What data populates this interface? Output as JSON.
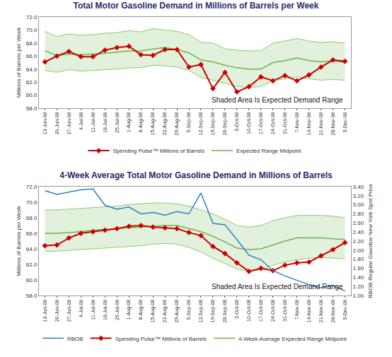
{
  "chart_data": [
    {
      "type": "line",
      "title": "Total Motor Gasoline Demand in Millions of Barrels per Week",
      "y_label": "Millions of Barrels per Week",
      "annotation": "Shaded Area Is Expected Demand Range",
      "categories": [
        "13-Jun-08",
        "20-Jun-08",
        "27-Jun-08",
        "4-Jul-08",
        "11-Jul-08",
        "18-Jul-08",
        "25-Jul-08",
        "1-Aug-08",
        "8-Aug-08",
        "15-Aug-08",
        "22-Aug-08",
        "29-Aug-08",
        "5-Sep-08",
        "12-Sep-08",
        "19-Sep-08",
        "26-Sep-08",
        "3-Oct-08",
        "10-Oct-08",
        "17-Oct-08",
        "24-Oct-08",
        "31-Oct-08",
        "7-Nov-08",
        "14-Nov-08",
        "21-Nov-08",
        "28-Nov-08",
        "5-Dec-08"
      ],
      "band": {
        "color": "#8cc870",
        "lower": [
          63.8,
          63.5,
          63.9,
          63.7,
          63.8,
          63.9,
          64.0,
          64.2,
          64.2,
          64.6,
          64.5,
          64.3,
          63.8,
          62.7,
          62.3,
          61.8,
          61.3,
          61.2,
          61.3,
          62.2,
          62.5,
          62.8,
          62.5,
          62.3,
          62.4,
          62.3
        ],
        "upper": [
          69.8,
          69.0,
          69.4,
          69.2,
          69.3,
          69.5,
          69.6,
          69.9,
          69.7,
          70.2,
          70.0,
          69.8,
          69.3,
          68.1,
          68.0,
          67.1,
          66.9,
          66.8,
          66.8,
          68.0,
          68.3,
          68.7,
          68.3,
          68.1,
          68.2,
          68.0
        ]
      },
      "series": [
        {
          "name": "Expected Range Midpoint",
          "color": "#6db350",
          "line_style": "solid",
          "values": [
            66.8,
            66.1,
            66.3,
            66.2,
            66.3,
            66.4,
            66.6,
            66.8,
            66.8,
            67.1,
            67.3,
            67.0,
            66.5,
            65.4,
            65.1,
            64.6,
            64.2,
            64.0,
            64.0,
            65.0,
            65.3,
            65.7,
            65.3,
            65.1,
            65.3,
            65.0
          ]
        },
        {
          "name": "Spending Pulse™ Millions of Barrels",
          "color": "#cc0000",
          "line_style": "solid",
          "marker": "diamond",
          "values": [
            65.1,
            66.0,
            66.7,
            65.9,
            65.9,
            66.9,
            67.3,
            67.5,
            66.2,
            66.1,
            67.0,
            67.0,
            64.3,
            64.7,
            61.0,
            63.5,
            60.5,
            61.3,
            62.8,
            62.2,
            63.0,
            62.2,
            63.1,
            64.3,
            65.4,
            65.2
          ]
        }
      ],
      "ylim": [
        58,
        72
      ],
      "yticks": [
        {
          "value": 58,
          "label": "58.0"
        },
        {
          "value": 60,
          "label": "60.0"
        },
        {
          "value": 62,
          "label": "62.0"
        },
        {
          "value": 64,
          "label": "64.0"
        },
        {
          "value": 66,
          "label": "66.0"
        },
        {
          "value": 68,
          "label": "68.0"
        },
        {
          "value": 70,
          "label": "70.0"
        },
        {
          "value": 72,
          "label": "72.0"
        }
      ],
      "grid": false,
      "legend": "bottom"
    },
    {
      "type": "line",
      "title": "4-Week Average Total Motor Gasoline Demand in Millions of Barrels",
      "y_label": "Millions of Barrels per Week",
      "y2_label": "RBOB Regular Gasoline New York Spot Price",
      "annotation": "Shaded Area Is Expected Demand Range",
      "categories": [
        "13-Jun-08",
        "20-Jun-08",
        "27-Jun-08",
        "4-Jul-08",
        "11-Jul-08",
        "18-Jul-08",
        "25-Jul-08",
        "1-Aug-08",
        "8-Aug-08",
        "15-Aug-08",
        "22-Aug-08",
        "29-Aug-08",
        "5-Sep-08",
        "12-Sep-08",
        "19-Sep-08",
        "26-Sep-08",
        "3-Oct-08",
        "10-Oct-08",
        "17-Oct-08",
        "24-Oct-08",
        "31-Oct-08",
        "7-Nov-08",
        "14-Nov-08",
        "21-Nov-08",
        "28-Nov-08",
        "5-Dec-08"
      ],
      "band": {
        "color": "#8cc870",
        "lower": [
          63.7,
          63.7,
          63.8,
          63.9,
          64.0,
          64.1,
          64.2,
          64.3,
          64.4,
          64.6,
          64.7,
          64.6,
          64.2,
          63.6,
          62.8,
          62.1,
          61.4,
          61.1,
          61.3,
          61.9,
          62.3,
          62.6,
          62.8,
          62.9,
          62.8,
          62.7
        ],
        "upper": [
          69.0,
          69.0,
          69.1,
          69.2,
          69.3,
          69.4,
          69.5,
          69.7,
          69.8,
          69.9,
          69.9,
          69.8,
          69.5,
          69.0,
          68.5,
          67.8,
          67.0,
          66.8,
          67.0,
          67.6,
          68.0,
          68.3,
          68.3,
          68.3,
          68.2,
          68.0
        ]
      },
      "series": [
        {
          "name": "4-Week Average Expected Range Midpoint",
          "color": "#6db350",
          "line_style": "solid",
          "values": [
            66.0,
            66.0,
            66.1,
            66.2,
            66.4,
            66.5,
            66.6,
            66.7,
            66.8,
            66.9,
            67.0,
            67.0,
            66.6,
            66.2,
            65.6,
            64.9,
            64.1,
            63.9,
            64.0,
            64.5,
            65.0,
            65.4,
            65.4,
            65.4,
            65.3,
            65.2
          ]
        },
        {
          "name": "Spending Pulse™ Millions of Barrels",
          "color": "#cc0000",
          "line_style": "solid",
          "marker": "diamond",
          "values": [
            64.4,
            64.5,
            65.4,
            66.0,
            66.2,
            66.4,
            66.6,
            66.9,
            67.0,
            66.8,
            66.7,
            66.6,
            66.1,
            65.7,
            64.3,
            63.4,
            62.2,
            61.1,
            61.5,
            61.2,
            61.9,
            62.2,
            62.3,
            63.1,
            63.9,
            64.8
          ]
        },
        {
          "name": "RBOB",
          "color": "#2a7fc0",
          "line_style": "solid",
          "axis": "y2",
          "values": [
            3.31,
            3.23,
            3.28,
            3.33,
            3.35,
            2.99,
            2.9,
            2.95,
            2.8,
            2.83,
            2.77,
            2.85,
            2.8,
            3.26,
            2.59,
            2.56,
            2.23,
            1.89,
            1.79,
            1.55,
            1.43,
            1.34,
            1.24,
            1.17,
            1.22,
            1.1
          ]
        }
      ],
      "ylim": [
        58,
        72
      ],
      "yticks": [
        {
          "value": 58,
          "label": "58.0"
        },
        {
          "value": 60,
          "label": "60.0"
        },
        {
          "value": 62,
          "label": "62.0"
        },
        {
          "value": 64,
          "label": "64.0"
        },
        {
          "value": 66,
          "label": "66.0"
        },
        {
          "value": 68,
          "label": "68.0"
        },
        {
          "value": 70,
          "label": "70.0"
        },
        {
          "value": 72,
          "label": "72.0"
        }
      ],
      "y2lim": [
        1.0,
        3.4
      ],
      "y2ticks": [
        {
          "value": 1.0,
          "label": "1.00"
        },
        {
          "value": 1.2,
          "label": "1.20"
        },
        {
          "value": 1.4,
          "label": "1.40"
        },
        {
          "value": 1.6,
          "label": "1.60"
        },
        {
          "value": 1.8,
          "label": "1.80"
        },
        {
          "value": 2.0,
          "label": "2.00"
        },
        {
          "value": 2.2,
          "label": "2.20"
        },
        {
          "value": 2.4,
          "label": "2.40"
        },
        {
          "value": 2.6,
          "label": "2.60"
        },
        {
          "value": 2.8,
          "label": "2.80"
        },
        {
          "value": 3.0,
          "label": "3.00"
        },
        {
          "value": 3.2,
          "label": "3.20"
        },
        {
          "value": 3.4,
          "label": "3.40"
        }
      ],
      "grid": false,
      "legend": "bottom"
    }
  ]
}
